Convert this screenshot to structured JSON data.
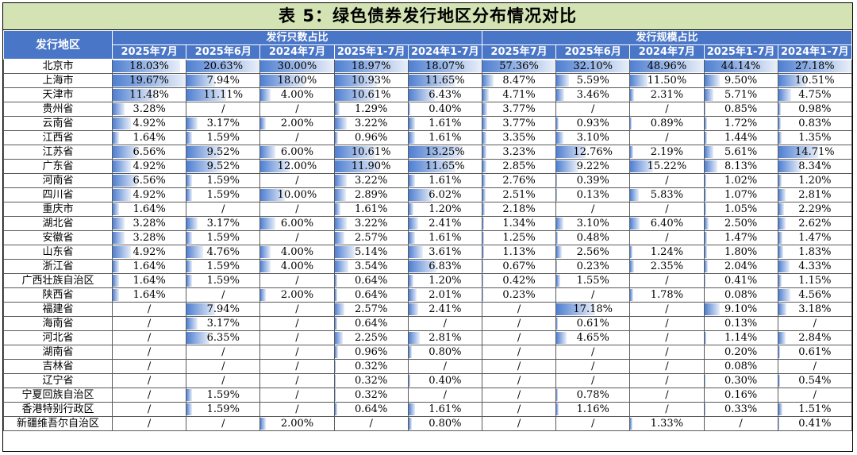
{
  "title": "表 5：绿色债券发行地区分布情况对比",
  "headers": {
    "region": "发行地区",
    "group1": "发行只数占比",
    "group2": "发行规模占比",
    "periods": [
      "2025年7月",
      "2025年6月",
      "2024年7月",
      "2025年1-7月",
      "2024年1-7月",
      "2025年7月",
      "2025年6月",
      "2024年7月",
      "2025年1-7月",
      "2024年1-7月"
    ]
  },
  "bar_color": "#4f7fd1",
  "rows": [
    {
      "region": "北京市",
      "values": [
        "18.03%",
        "20.63%",
        "30.00%",
        "18.97%",
        "18.07%",
        "57.36%",
        "32.10%",
        "48.96%",
        "44.14%",
        "27.18%"
      ]
    },
    {
      "region": "上海市",
      "values": [
        "19.67%",
        "7.94%",
        "18.00%",
        "10.93%",
        "11.65%",
        "8.47%",
        "5.59%",
        "11.50%",
        "9.50%",
        "10.51%"
      ]
    },
    {
      "region": "天津市",
      "values": [
        "11.48%",
        "11.11%",
        "4.00%",
        "10.61%",
        "6.43%",
        "4.71%",
        "3.46%",
        "2.31%",
        "5.71%",
        "4.75%"
      ]
    },
    {
      "region": "贵州省",
      "values": [
        "3.28%",
        "/",
        "/",
        "1.29%",
        "0.40%",
        "3.77%",
        "/",
        "/",
        "0.85%",
        "0.98%"
      ]
    },
    {
      "region": "云南省",
      "values": [
        "4.92%",
        "3.17%",
        "2.00%",
        "3.22%",
        "1.61%",
        "3.77%",
        "0.93%",
        "0.89%",
        "1.72%",
        "0.83%"
      ]
    },
    {
      "region": "江西省",
      "values": [
        "1.64%",
        "1.59%",
        "/",
        "0.96%",
        "1.61%",
        "3.35%",
        "3.10%",
        "/",
        "1.44%",
        "1.35%"
      ]
    },
    {
      "region": "江苏省",
      "values": [
        "6.56%",
        "9.52%",
        "6.00%",
        "10.61%",
        "13.25%",
        "3.23%",
        "12.76%",
        "2.19%",
        "5.61%",
        "14.71%"
      ]
    },
    {
      "region": "广东省",
      "values": [
        "4.92%",
        "9.52%",
        "12.00%",
        "11.90%",
        "11.65%",
        "2.85%",
        "9.22%",
        "15.22%",
        "8.13%",
        "8.34%"
      ]
    },
    {
      "region": "河南省",
      "values": [
        "6.56%",
        "1.59%",
        "/",
        "3.22%",
        "1.61%",
        "2.76%",
        "0.39%",
        "/",
        "1.02%",
        "1.20%"
      ]
    },
    {
      "region": "四川省",
      "values": [
        "4.92%",
        "1.59%",
        "10.00%",
        "2.89%",
        "6.02%",
        "2.51%",
        "0.13%",
        "5.83%",
        "1.07%",
        "2.81%"
      ]
    },
    {
      "region": "重庆市",
      "values": [
        "1.64%",
        "/",
        "/",
        "1.61%",
        "1.20%",
        "2.18%",
        "/",
        "/",
        "1.05%",
        "2.29%"
      ]
    },
    {
      "region": "湖北省",
      "values": [
        "3.28%",
        "3.17%",
        "6.00%",
        "3.22%",
        "2.41%",
        "1.34%",
        "3.10%",
        "6.40%",
        "2.50%",
        "2.62%"
      ]
    },
    {
      "region": "安徽省",
      "values": [
        "3.28%",
        "1.59%",
        "/",
        "2.57%",
        "1.61%",
        "1.25%",
        "0.48%",
        "/",
        "1.47%",
        "1.47%"
      ]
    },
    {
      "region": "山东省",
      "values": [
        "4.92%",
        "4.76%",
        "4.00%",
        "5.14%",
        "3.61%",
        "1.13%",
        "2.56%",
        "1.24%",
        "1.80%",
        "1.83%"
      ]
    },
    {
      "region": "浙江省",
      "values": [
        "1.64%",
        "1.59%",
        "4.00%",
        "3.54%",
        "6.83%",
        "0.67%",
        "0.23%",
        "2.35%",
        "2.04%",
        "4.33%"
      ]
    },
    {
      "region": "广西壮族自治区",
      "values": [
        "1.64%",
        "1.59%",
        "/",
        "0.64%",
        "1.20%",
        "0.42%",
        "1.55%",
        "/",
        "0.41%",
        "1.15%"
      ]
    },
    {
      "region": "陕西省",
      "values": [
        "1.64%",
        "/",
        "2.00%",
        "0.64%",
        "2.01%",
        "0.23%",
        "/",
        "1.78%",
        "0.08%",
        "4.56%"
      ]
    },
    {
      "region": "福建省",
      "values": [
        "/",
        "7.94%",
        "/",
        "2.57%",
        "2.41%",
        "/",
        "17.18%",
        "/",
        "9.10%",
        "3.18%"
      ]
    },
    {
      "region": "海南省",
      "values": [
        "/",
        "3.17%",
        "/",
        "0.64%",
        "/",
        "/",
        "0.61%",
        "/",
        "0.13%",
        "/"
      ]
    },
    {
      "region": "河北省",
      "values": [
        "/",
        "6.35%",
        "/",
        "2.25%",
        "2.81%",
        "/",
        "4.65%",
        "/",
        "1.14%",
        "2.84%"
      ]
    },
    {
      "region": "湖南省",
      "values": [
        "/",
        "/",
        "/",
        "0.96%",
        "0.80%",
        "/",
        "/",
        "/",
        "0.20%",
        "0.61%"
      ]
    },
    {
      "region": "吉林省",
      "values": [
        "/",
        "/",
        "/",
        "0.32%",
        "/",
        "/",
        "/",
        "/",
        "0.08%",
        "/"
      ]
    },
    {
      "region": "辽宁省",
      "values": [
        "/",
        "/",
        "/",
        "0.32%",
        "0.40%",
        "/",
        "/",
        "/",
        "0.30%",
        "0.54%"
      ]
    },
    {
      "region": "宁夏回族自治区",
      "values": [
        "/",
        "1.59%",
        "/",
        "0.32%",
        "/",
        "/",
        "0.78%",
        "/",
        "0.16%",
        "/"
      ]
    },
    {
      "region": "香港特别行政区",
      "values": [
        "/",
        "1.59%",
        "/",
        "0.64%",
        "1.61%",
        "/",
        "1.16%",
        "/",
        "0.33%",
        "1.51%"
      ]
    },
    {
      "region": "新疆维吾尔自治区",
      "values": [
        "/",
        "/",
        "2.00%",
        "/",
        "0.80%",
        "/",
        "/",
        "1.33%",
        "/",
        "0.41%"
      ]
    }
  ]
}
